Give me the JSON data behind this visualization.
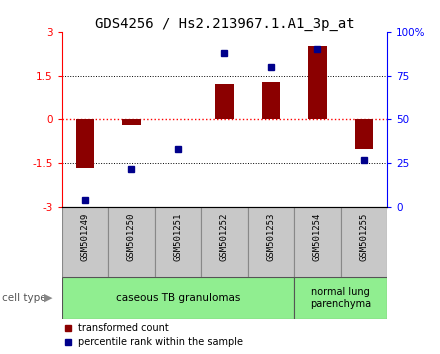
{
  "title": "GDS4256 / Hs2.213967.1.A1_3p_at",
  "samples": [
    "GSM501249",
    "GSM501250",
    "GSM501251",
    "GSM501252",
    "GSM501253",
    "GSM501254",
    "GSM501255"
  ],
  "transformed_count": [
    -1.65,
    -0.2,
    0.0,
    1.2,
    1.3,
    2.5,
    -1.0
  ],
  "percentile_rank": [
    4,
    22,
    33,
    88,
    80,
    90,
    27
  ],
  "ylim_left": [
    -3,
    3
  ],
  "ylim_right": [
    0,
    100
  ],
  "yticks_left": [
    -3,
    -1.5,
    0,
    1.5,
    3
  ],
  "yticks_right": [
    0,
    25,
    50,
    75,
    100
  ],
  "ytick_labels_left": [
    "-3",
    "-1.5",
    "0",
    "1.5",
    "3"
  ],
  "ytick_labels_right": [
    "0",
    "25",
    "50",
    "75",
    "100%"
  ],
  "group1_indices": [
    0,
    1,
    2,
    3,
    4
  ],
  "group2_indices": [
    5,
    6
  ],
  "group1_label": "caseous TB granulomas",
  "group2_label": "normal lung\nparenchyma",
  "cell_type_label": "cell type",
  "legend1_label": "transformed count",
  "legend2_label": "percentile rank within the sample",
  "bar_color": "#8B0000",
  "dot_color": "#00008B",
  "bg_color_groups": "#90EE90",
  "sample_box_color": "#C8C8C8",
  "title_fontsize": 10,
  "tick_fontsize": 7.5,
  "sample_fontsize": 6.5,
  "group_fontsize": 7.5,
  "legend_fontsize": 7,
  "cell_type_fontsize": 7.5
}
